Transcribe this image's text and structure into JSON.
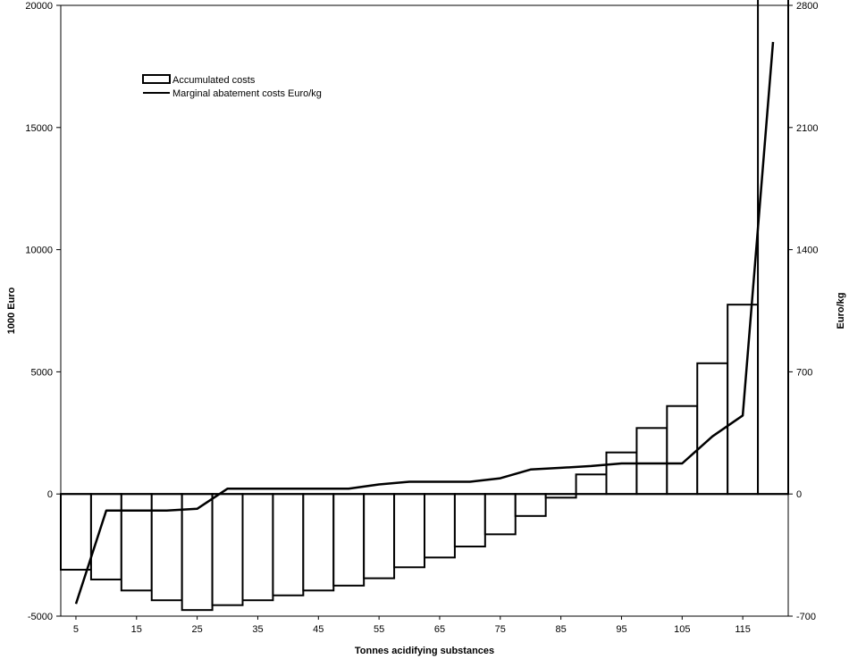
{
  "chart_data": {
    "type": "bar",
    "title": "",
    "xlabel": "Tonnes acidifying substances",
    "ylabel_left": "1000 Euro",
    "ylabel_right": "Euro/kg",
    "x_tick_labels": [
      "5",
      "15",
      "25",
      "35",
      "45",
      "55",
      "65",
      "75",
      "85",
      "95",
      "105",
      "115"
    ],
    "ylim_left": [
      -5000,
      20000
    ],
    "yticks_left": [
      "-5000",
      "0",
      "5000",
      "10000",
      "15000",
      "20000"
    ],
    "ylim_right": [
      -700,
      2800
    ],
    "yticks_right": [
      "-700",
      "0",
      "700",
      "1400",
      "2100",
      "2800"
    ],
    "legend_position": "upper-left",
    "grid": false,
    "series": [
      {
        "name": "Accumulated costs",
        "kind": "bar",
        "color": "#ffffff",
        "edge_color": "#000000",
        "x_ranges": [
          [
            2.5,
            7.5
          ],
          [
            7.5,
            12.5
          ],
          [
            12.5,
            17.5
          ],
          [
            17.5,
            22.5
          ],
          [
            22.5,
            27.5
          ],
          [
            27.5,
            32.5
          ],
          [
            32.5,
            37.5
          ],
          [
            37.5,
            42.5
          ],
          [
            42.5,
            47.5
          ],
          [
            47.5,
            52.5
          ],
          [
            52.5,
            57.5
          ],
          [
            57.5,
            62.5
          ],
          [
            62.5,
            67.5
          ],
          [
            67.5,
            72.5
          ],
          [
            72.5,
            77.5
          ],
          [
            77.5,
            82.5
          ],
          [
            82.5,
            87.5
          ],
          [
            87.5,
            92.5
          ],
          [
            92.5,
            97.5
          ],
          [
            97.5,
            102.5
          ],
          [
            102.5,
            107.5
          ],
          [
            107.5,
            112.5
          ],
          [
            112.5,
            117.5
          ],
          [
            117.5,
            122.5
          ]
        ],
        "values": [
          -3100,
          -3500,
          -3950,
          -4350,
          -4750,
          -4550,
          -4350,
          -4150,
          -3950,
          -3750,
          -3450,
          -3000,
          -2600,
          -2150,
          -1650,
          -900,
          -150,
          800,
          1700,
          2700,
          3600,
          5350,
          7750,
          20800
        ]
      },
      {
        "name": "Marginal abatement costs Euro/kg",
        "kind": "line",
        "axis": "right",
        "color": "#000000",
        "x": [
          5,
          10,
          15,
          20,
          25,
          30,
          35,
          40,
          45,
          50,
          55,
          60,
          65,
          70,
          75,
          80,
          85,
          90,
          95,
          100,
          105,
          110,
          115,
          120
        ],
        "values": [
          -630,
          -95,
          -95,
          -95,
          -85,
          30,
          30,
          30,
          30,
          30,
          55,
          70,
          70,
          70,
          90,
          140,
          150,
          160,
          175,
          175,
          175,
          330,
          450,
          2590
        ]
      }
    ]
  }
}
